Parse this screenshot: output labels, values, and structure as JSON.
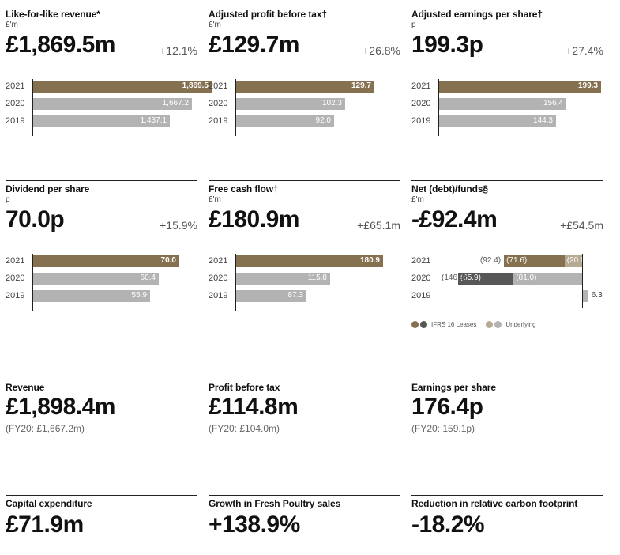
{
  "kpis": [
    {
      "title": "Like-for-like revenue*",
      "unit": "£'m",
      "value": "£1,869.5m",
      "change": "+12.1%",
      "bars": [
        {
          "year": "2021",
          "value": 1869.5,
          "label": "1,869.5"
        },
        {
          "year": "2020",
          "value": 1667.2,
          "label": "1,667.2"
        },
        {
          "year": "2019",
          "value": 1437.1,
          "label": "1,437.1"
        }
      ]
    },
    {
      "title": "Adjusted profit before tax†",
      "unit": "£'m",
      "value": "£129.7m",
      "change": "+26.8%",
      "bars": [
        {
          "year": "2021",
          "value": 129.7,
          "label": "129.7"
        },
        {
          "year": "2020",
          "value": 102.3,
          "label": "102.3"
        },
        {
          "year": "2019",
          "value": 92.0,
          "label": "92.0"
        }
      ]
    },
    {
      "title": "Adjusted earnings per share†",
      "unit": "p",
      "value": "199.3p",
      "change": "+27.4%",
      "bars": [
        {
          "year": "2021",
          "value": 199.3,
          "label": "199.3"
        },
        {
          "year": "2020",
          "value": 156.4,
          "label": "156.4"
        },
        {
          "year": "2019",
          "value": 144.3,
          "label": "144.3"
        }
      ]
    },
    {
      "title": "Dividend per share",
      "unit": "p",
      "value": "70.0p",
      "change": "+15.9%",
      "bars": [
        {
          "year": "2021",
          "value": 70.0,
          "label": "70.0"
        },
        {
          "year": "2020",
          "value": 60.4,
          "label": "60.4"
        },
        {
          "year": "2019",
          "value": 55.9,
          "label": "55.9"
        }
      ]
    },
    {
      "title": "Free cash flow†",
      "unit": "£'m",
      "value": "£180.9m",
      "change": "+£65.1m",
      "bars": [
        {
          "year": "2021",
          "value": 180.9,
          "label": "180.9"
        },
        {
          "year": "2020",
          "value": 115.8,
          "label": "115.8"
        },
        {
          "year": "2019",
          "value": 87.3,
          "label": "87.3"
        }
      ]
    },
    {
      "title": "Net (debt)/funds§",
      "unit": "£'m",
      "value": "-£92.4m",
      "change": "+£54.5m"
    }
  ],
  "net_chart": {
    "rows": [
      {
        "year": "2021",
        "total_label": "(92.4)",
        "ifrs16": -71.6,
        "ifrs16_label": "(71.6)",
        "underlying": -20.8,
        "underlying_label": "(20.8)"
      },
      {
        "year": "2020",
        "total_label": "(146.9)",
        "ifrs16": -65.9,
        "ifrs16_label": "(65.9)",
        "underlying": -81.0,
        "underlying_label": "(81.0)"
      },
      {
        "year": "2019",
        "underlying": 6.3,
        "underlying_label": "6.3"
      }
    ],
    "legend": [
      "IFRS 16 Leases",
      "Underlying"
    ],
    "colors": {
      "cur_ifrs": "#857150",
      "cur_under": "#b6aa92",
      "prev_ifrs": "#575757",
      "prev_under": "#b3b3b3"
    }
  },
  "stats": [
    {
      "title": "Revenue",
      "value": "£1,898.4m",
      "sub": "(FY20: £1,667.2m)"
    },
    {
      "title": "Profit before tax",
      "value": "£114.8m",
      "sub": "(FY20: £104.0m)"
    },
    {
      "title": "Earnings per share",
      "value": "176.4p",
      "sub": "(FY20: 159.1p)"
    },
    {
      "title": "Capital expenditure",
      "value": "£71.9m"
    },
    {
      "title": "Growth in Fresh Poultry sales",
      "value": "+138.9%"
    },
    {
      "title": "Reduction in relative carbon footprint",
      "value": "-18.2%"
    }
  ],
  "colors": {
    "current": "#857150",
    "prior": "#b3b3b3"
  }
}
